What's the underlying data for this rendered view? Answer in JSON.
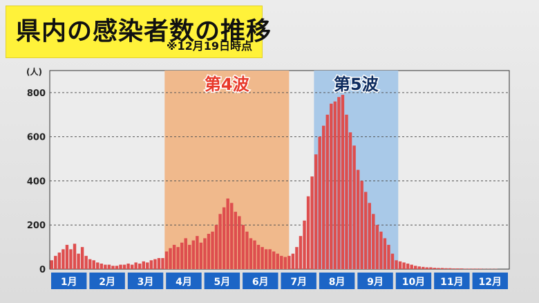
{
  "title": "県内の感染者数の推移",
  "note": "※12月19日時点",
  "chart_data": {
    "type": "bar",
    "unit_label": "(人)",
    "ylim": [
      0,
      900
    ],
    "yticks": [
      0,
      200,
      400,
      600,
      800
    ],
    "grid": true,
    "months": [
      "1月",
      "2月",
      "3月",
      "4月",
      "5月",
      "6月",
      "7月",
      "8月",
      "9月",
      "10月",
      "11月",
      "12月"
    ],
    "waves": [
      {
        "label": "第4波",
        "start_month": 3.0,
        "end_month": 6.25,
        "color": "#f0b98c",
        "label_color": "#e8392a"
      },
      {
        "label": "第5波",
        "start_month": 6.9,
        "end_month": 9.1,
        "color": "#a9c9e8",
        "label_color": "#0d2b5e"
      }
    ],
    "colors": {
      "bar": "#de4e4e",
      "month_box": "#1c65c6",
      "chart_bg": "#ececec"
    },
    "points": [
      [
        0.05,
        40
      ],
      [
        0.15,
        60
      ],
      [
        0.25,
        75
      ],
      [
        0.35,
        90
      ],
      [
        0.45,
        110
      ],
      [
        0.55,
        90
      ],
      [
        0.65,
        115
      ],
      [
        0.75,
        70
      ],
      [
        0.85,
        100
      ],
      [
        0.95,
        60
      ],
      [
        1.05,
        45
      ],
      [
        1.15,
        40
      ],
      [
        1.25,
        30
      ],
      [
        1.35,
        25
      ],
      [
        1.45,
        20
      ],
      [
        1.55,
        20
      ],
      [
        1.65,
        15
      ],
      [
        1.75,
        15
      ],
      [
        1.85,
        20
      ],
      [
        1.95,
        20
      ],
      [
        2.05,
        25
      ],
      [
        2.15,
        20
      ],
      [
        2.25,
        30
      ],
      [
        2.35,
        25
      ],
      [
        2.45,
        35
      ],
      [
        2.55,
        30
      ],
      [
        2.65,
        40
      ],
      [
        2.75,
        45
      ],
      [
        2.85,
        50
      ],
      [
        2.95,
        50
      ],
      [
        3.05,
        80
      ],
      [
        3.15,
        95
      ],
      [
        3.25,
        110
      ],
      [
        3.35,
        100
      ],
      [
        3.45,
        120
      ],
      [
        3.55,
        140
      ],
      [
        3.65,
        110
      ],
      [
        3.75,
        130
      ],
      [
        3.85,
        150
      ],
      [
        3.95,
        120
      ],
      [
        4.05,
        140
      ],
      [
        4.15,
        160
      ],
      [
        4.25,
        170
      ],
      [
        4.35,
        200
      ],
      [
        4.45,
        250
      ],
      [
        4.55,
        280
      ],
      [
        4.65,
        320
      ],
      [
        4.75,
        300
      ],
      [
        4.85,
        260
      ],
      [
        4.95,
        240
      ],
      [
        5.05,
        200
      ],
      [
        5.15,
        170
      ],
      [
        5.25,
        140
      ],
      [
        5.35,
        130
      ],
      [
        5.45,
        110
      ],
      [
        5.55,
        100
      ],
      [
        5.65,
        90
      ],
      [
        5.75,
        90
      ],
      [
        5.85,
        80
      ],
      [
        5.95,
        70
      ],
      [
        6.05,
        60
      ],
      [
        6.15,
        55
      ],
      [
        6.25,
        60
      ],
      [
        6.35,
        70
      ],
      [
        6.45,
        100
      ],
      [
        6.55,
        150
      ],
      [
        6.65,
        220
      ],
      [
        6.75,
        330
      ],
      [
        6.85,
        420
      ],
      [
        6.95,
        520
      ],
      [
        7.05,
        600
      ],
      [
        7.15,
        650
      ],
      [
        7.25,
        700
      ],
      [
        7.35,
        750
      ],
      [
        7.45,
        760
      ],
      [
        7.55,
        780
      ],
      [
        7.65,
        790
      ],
      [
        7.75,
        700
      ],
      [
        7.85,
        620
      ],
      [
        7.95,
        560
      ],
      [
        8.05,
        450
      ],
      [
        8.15,
        400
      ],
      [
        8.25,
        350
      ],
      [
        8.35,
        300
      ],
      [
        8.45,
        250
      ],
      [
        8.55,
        200
      ],
      [
        8.65,
        170
      ],
      [
        8.75,
        140
      ],
      [
        8.85,
        110
      ],
      [
        8.95,
        70
      ],
      [
        9.05,
        40
      ],
      [
        9.15,
        35
      ],
      [
        9.25,
        30
      ],
      [
        9.35,
        25
      ],
      [
        9.45,
        20
      ],
      [
        9.55,
        15
      ],
      [
        9.65,
        12
      ],
      [
        9.75,
        10
      ],
      [
        9.85,
        8
      ],
      [
        9.95,
        8
      ],
      [
        10.05,
        6
      ],
      [
        10.15,
        5
      ],
      [
        10.25,
        5
      ],
      [
        10.35,
        4
      ],
      [
        10.45,
        4
      ],
      [
        10.55,
        3
      ],
      [
        10.65,
        3
      ],
      [
        10.75,
        3
      ],
      [
        10.85,
        2
      ],
      [
        10.95,
        2
      ],
      [
        11.05,
        2
      ],
      [
        11.15,
        2
      ],
      [
        11.25,
        2
      ],
      [
        11.35,
        1
      ],
      [
        11.45,
        1
      ],
      [
        11.55,
        1
      ],
      [
        11.65,
        1
      ]
    ]
  }
}
